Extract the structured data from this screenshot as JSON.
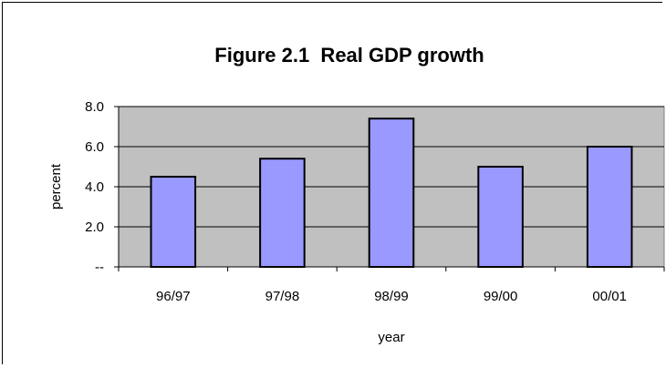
{
  "chart_data": {
    "type": "bar",
    "title": "Figure 2.1  Real GDP growth",
    "xlabel": "year",
    "ylabel": "percent",
    "categories": [
      "96/97",
      "97/98",
      "98/99",
      "99/00",
      "00/01"
    ],
    "values": [
      4.5,
      5.4,
      7.4,
      5.0,
      6.0
    ],
    "ylim": [
      0,
      8
    ],
    "yticks": [
      0,
      2,
      4,
      6,
      8
    ],
    "ytick_labels": [
      "--",
      "2.0",
      "4.0",
      "6.0",
      "8.0"
    ],
    "grid": true,
    "legend": "none",
    "colors": {
      "bar_fill": "#9999ff",
      "bar_stroke": "#000000",
      "plot_background": "#c0c0c0",
      "gridline": "#000000"
    }
  }
}
